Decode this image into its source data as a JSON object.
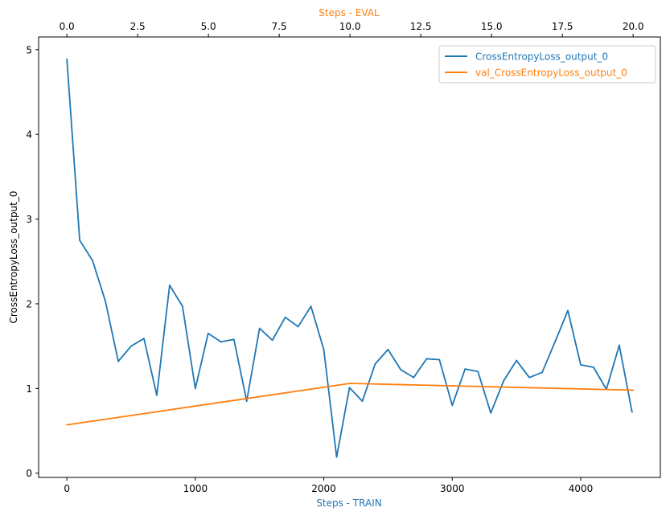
{
  "chart_data": {
    "type": "line",
    "ylabel": "CrossEntropyLoss_output_0",
    "ylim": [
      -0.05,
      5.15
    ],
    "yticks": [
      0,
      1,
      2,
      3,
      4,
      5
    ],
    "y_tick_labels": [
      "0",
      "1",
      "2",
      "3",
      "4",
      "5"
    ],
    "grid": false,
    "legend_placement": "top-right",
    "axes": {
      "bottom": {
        "label": "Steps - TRAIN",
        "label_color": "#1f77b4",
        "xlim": [
          -220,
          4620
        ],
        "ticks": [
          0,
          1000,
          2000,
          3000,
          4000
        ],
        "tick_labels": [
          "0",
          "1000",
          "2000",
          "3000",
          "4000"
        ]
      },
      "top": {
        "label": "Steps - EVAL",
        "label_color": "#ff7f0e",
        "xlim": [
          -0.9981,
          20.9604
        ],
        "ticks": [
          0,
          2.5,
          5,
          7.5,
          10,
          12.5,
          15,
          17.5,
          20
        ],
        "tick_labels": [
          "0.0",
          "2.5",
          "5.0",
          "7.5",
          "10.0",
          "12.5",
          "15.0",
          "17.5",
          "20.0"
        ]
      }
    },
    "series": [
      {
        "name": "CrossEntropyLoss_output_0",
        "color": "#1f77b4",
        "axis": "bottom",
        "x": [
          0,
          100,
          200,
          300,
          400,
          500,
          600,
          700,
          800,
          900,
          1000,
          1100,
          1200,
          1300,
          1400,
          1500,
          1600,
          1700,
          1800,
          1900,
          2000,
          2100,
          2200,
          2300,
          2400,
          2500,
          2600,
          2700,
          2800,
          2900,
          3000,
          3100,
          3200,
          3300,
          3400,
          3500,
          3600,
          3700,
          3800,
          3900,
          4000,
          4100,
          4200,
          4300,
          4400
        ],
        "y": [
          4.89,
          2.75,
          2.51,
          2.03,
          1.32,
          1.5,
          1.59,
          0.92,
          2.22,
          1.97,
          1.0,
          1.65,
          1.55,
          1.58,
          0.85,
          1.71,
          1.57,
          1.84,
          1.73,
          1.97,
          1.46,
          0.19,
          1.01,
          0.85,
          1.29,
          1.46,
          1.22,
          1.13,
          1.35,
          1.34,
          0.8,
          1.23,
          1.2,
          0.71,
          1.09,
          1.33,
          1.13,
          1.19,
          1.55,
          1.92,
          1.28,
          1.25,
          0.99,
          1.51,
          0.72
        ]
      },
      {
        "name": "val_CrossEntropyLoss_output_0",
        "color": "#ff7f0e",
        "axis": "top",
        "x": [
          0,
          10,
          20
        ],
        "y": [
          0.57,
          1.06,
          0.98
        ]
      }
    ]
  }
}
